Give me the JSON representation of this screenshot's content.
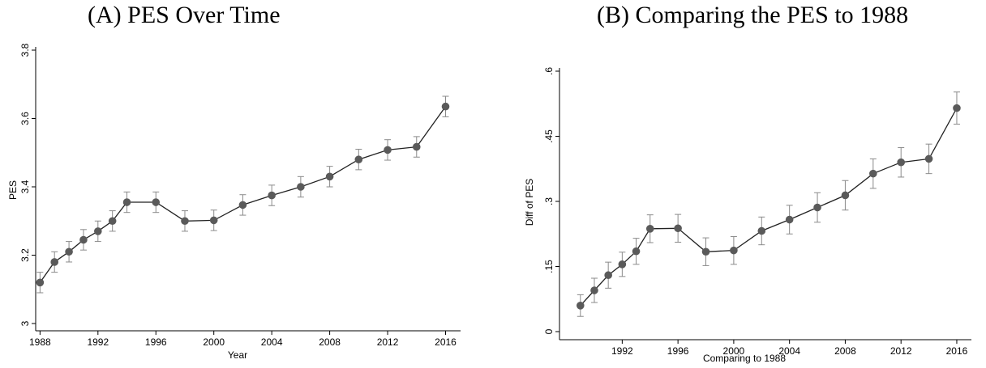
{
  "chart_data": [
    {
      "type": "line",
      "title": "(A) PES Over Time",
      "xlabel": "Year",
      "ylabel": "PES",
      "xlim": [
        1987.7,
        2016.7
      ],
      "ylim": [
        3.0,
        3.8
      ],
      "xticks": [
        1988,
        1992,
        1996,
        2000,
        2004,
        2008,
        2012,
        2016
      ],
      "yticks": [
        3,
        3.2,
        3.4,
        3.6,
        3.8
      ],
      "ytick_labels": [
        "3",
        "3.2",
        "3.4",
        "3.6",
        "3.8"
      ],
      "series": [
        {
          "x": [
            1988,
            1989,
            1990,
            1991,
            1992,
            1993,
            1994,
            1996,
            1998,
            2000,
            2002,
            2004,
            2006,
            2008,
            2010,
            2012,
            2014,
            2016
          ],
          "values": [
            3.12,
            3.18,
            3.21,
            3.245,
            3.27,
            3.3,
            3.355,
            3.355,
            3.3,
            3.302,
            3.347,
            3.375,
            3.4,
            3.43,
            3.48,
            3.508,
            3.517,
            3.635
          ],
          "ci_low": [
            3.09,
            3.15,
            3.18,
            3.215,
            3.24,
            3.27,
            3.325,
            3.325,
            3.27,
            3.272,
            3.317,
            3.345,
            3.37,
            3.4,
            3.45,
            3.478,
            3.487,
            3.605
          ],
          "ci_high": [
            3.15,
            3.21,
            3.24,
            3.275,
            3.3,
            3.33,
            3.385,
            3.385,
            3.33,
            3.332,
            3.377,
            3.405,
            3.43,
            3.46,
            3.51,
            3.538,
            3.547,
            3.665
          ]
        }
      ],
      "grid": false,
      "line_color": "#222222",
      "marker_color": "#5a5a5a",
      "errorbar_color": "#8a8a8a"
    },
    {
      "type": "line",
      "title": "(B) Comparing the PES to 1988",
      "xlabel": "Comparing to 1988",
      "ylabel": "Diff of PES",
      "xlim": [
        1987.5,
        2016.7
      ],
      "ylim": [
        0,
        0.6
      ],
      "xticks": [
        1992,
        1996,
        2000,
        2004,
        2008,
        2012,
        2016
      ],
      "yticks": [
        0,
        0.15,
        0.3,
        0.45,
        0.6
      ],
      "ytick_labels": [
        "0",
        ".15",
        ".3",
        ".45",
        ".6"
      ],
      "series": [
        {
          "x": [
            1989,
            1990,
            1991,
            1992,
            1993,
            1994,
            1996,
            1998,
            2000,
            2002,
            2004,
            2006,
            2008,
            2010,
            2012,
            2014,
            2016
          ],
          "values": [
            0.06,
            0.095,
            0.13,
            0.155,
            0.185,
            0.237,
            0.238,
            0.184,
            0.187,
            0.232,
            0.258,
            0.286,
            0.314,
            0.364,
            0.39,
            0.398,
            0.515
          ],
          "ci_low": [
            0.035,
            0.067,
            0.1,
            0.127,
            0.155,
            0.205,
            0.206,
            0.152,
            0.155,
            0.2,
            0.225,
            0.252,
            0.28,
            0.33,
            0.356,
            0.364,
            0.478
          ],
          "ci_high": [
            0.085,
            0.123,
            0.16,
            0.183,
            0.215,
            0.269,
            0.27,
            0.216,
            0.219,
            0.264,
            0.291,
            0.32,
            0.348,
            0.398,
            0.424,
            0.432,
            0.552
          ]
        }
      ],
      "grid": false,
      "line_color": "#222222",
      "marker_color": "#5a5a5a",
      "errorbar_color": "#8a8a8a"
    }
  ]
}
